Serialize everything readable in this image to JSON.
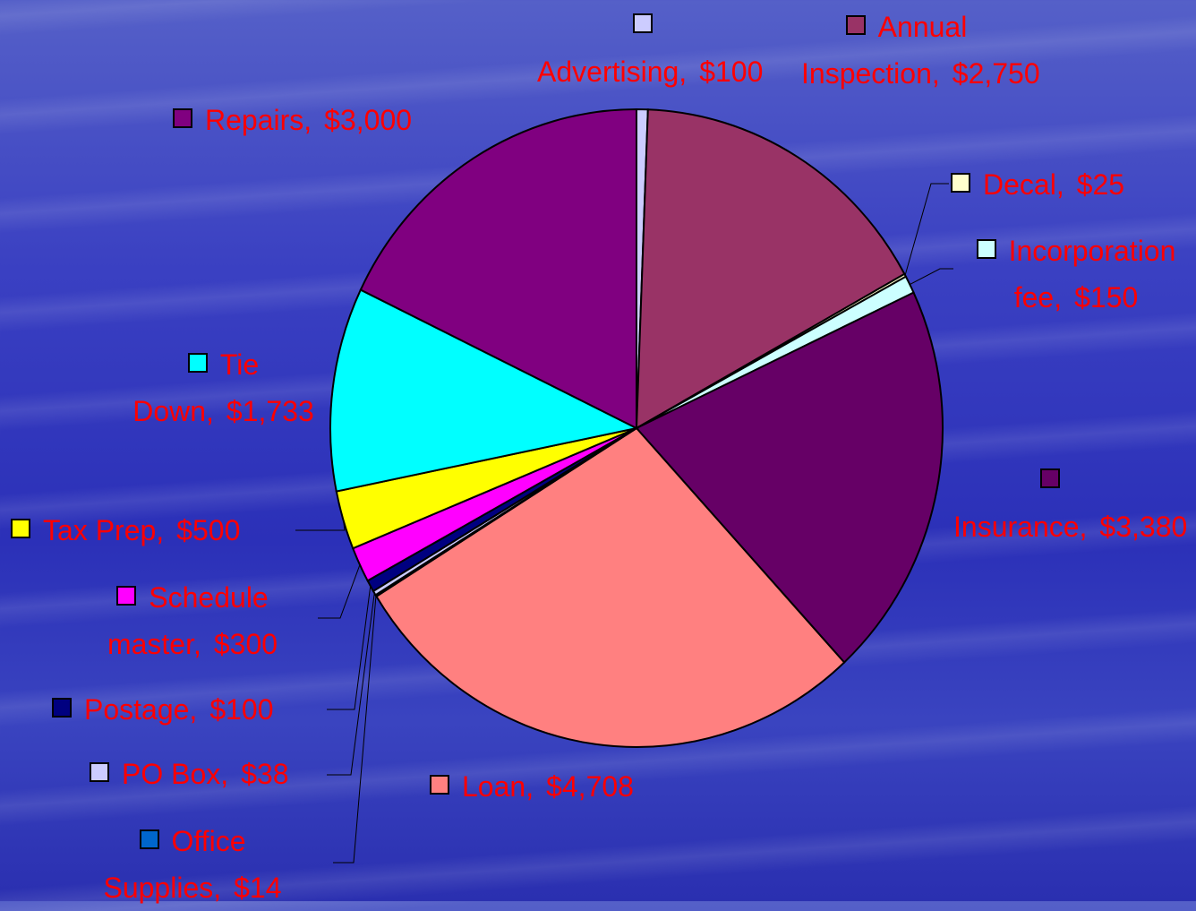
{
  "chart_data": {
    "type": "pie",
    "categories": [
      "Advertising,",
      "Annual Inspection,",
      "Decal,",
      "Incorporation fee,",
      "Insurance,",
      "Loan,",
      "Office Supplies,",
      "PO Box,",
      "Postage,",
      "Schedule master,",
      "Tax Prep,",
      "Tie Down,",
      "Repairs,"
    ],
    "values": [
      100,
      2750,
      25,
      150,
      3380,
      4708,
      14,
      38,
      100,
      300,
      500,
      1733,
      3000
    ],
    "value_labels": [
      "$100",
      "$2,750",
      "$25",
      "$150",
      "$3,380",
      "$4,708",
      "$14",
      "$38",
      "$100",
      "$300",
      "$500",
      "$1,733",
      "$3,000"
    ],
    "colors": [
      "#ccccff",
      "#993366",
      "#ffffcc",
      "#ccffff",
      "#660066",
      "#ff8080",
      "#0066cc",
      "#ccccff",
      "#000080",
      "#ff00ff",
      "#ffff00",
      "#00ffff",
      "#800080"
    ]
  }
}
